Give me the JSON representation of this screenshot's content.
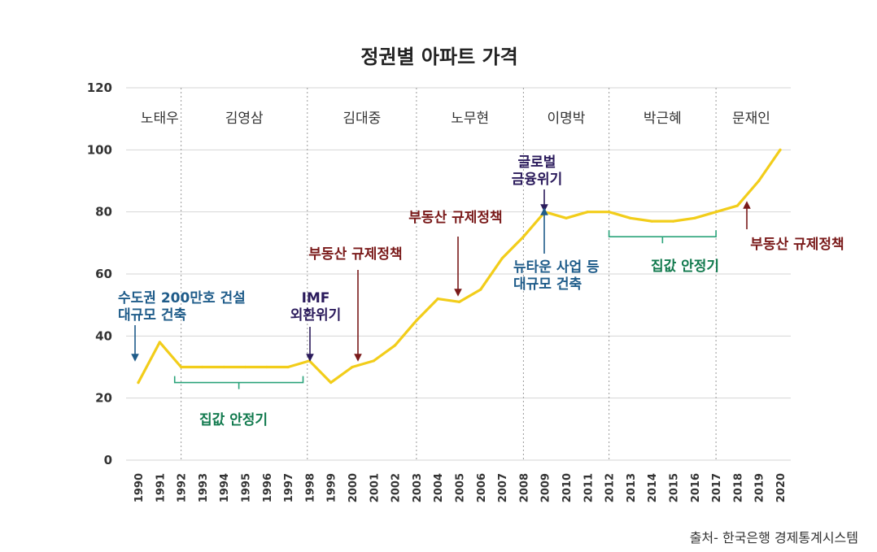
{
  "chart_data": {
    "type": "line",
    "title": "정권별 아파트 가격",
    "xlabel": "",
    "ylabel": "",
    "ylim": [
      0,
      120
    ],
    "yticks": [
      0,
      20,
      40,
      60,
      80,
      100,
      120
    ],
    "grid": true,
    "categories": [
      "1990",
      "1991",
      "1992",
      "1993",
      "1994",
      "1995",
      "1996",
      "1997",
      "1998",
      "1999",
      "2000",
      "2001",
      "2002",
      "2003",
      "2004",
      "2005",
      "2006",
      "2007",
      "2008",
      "2009",
      "2010",
      "2011",
      "2012",
      "2013",
      "2014",
      "2015",
      "2016",
      "2017",
      "2018",
      "2019",
      "2020"
    ],
    "series": [
      {
        "name": "아파트 가격",
        "x": [
          1990,
          1991,
          1992,
          1993,
          1994,
          1995,
          1996,
          1997,
          1998,
          1999,
          2000,
          2001,
          2002,
          2003,
          2004,
          2005,
          2006,
          2007,
          2008,
          2009,
          2010,
          2011,
          2012,
          2013,
          2014,
          2015,
          2016,
          2017,
          2018,
          2019,
          2020
        ],
        "values": [
          25,
          38,
          30,
          30,
          30,
          30,
          30,
          30,
          32,
          25,
          30,
          32,
          37,
          45,
          52,
          51,
          55,
          65,
          72,
          80,
          78,
          80,
          80,
          78,
          77,
          77,
          78,
          80,
          82,
          90,
          100
        ]
      }
    ],
    "eras": [
      {
        "name": "노태우",
        "start": 1990,
        "end": 1992
      },
      {
        "name": "김영삼",
        "start": 1992,
        "end": 1997.9
      },
      {
        "name": "김대중",
        "start": 1997.9,
        "end": 2003
      },
      {
        "name": "노무현",
        "start": 2003,
        "end": 2008
      },
      {
        "name": "이명박",
        "start": 2008,
        "end": 2012
      },
      {
        "name": "박근혜",
        "start": 2012,
        "end": 2017
      },
      {
        "name": "문재인",
        "start": 2017,
        "end": 2020.3
      }
    ],
    "annotations": [
      {
        "id": "ann-housing-2m",
        "lines": [
          "수도권 200만호 건설",
          "대규모 건축"
        ],
        "color": "#1f5c8a",
        "year": 1989.2
      },
      {
        "id": "ann-imf",
        "lines": [
          "IMF",
          "외환위기"
        ],
        "color": "#2b1b5c",
        "year": 1998
      },
      {
        "id": "ann-regulation-2000",
        "lines": [
          "부동산 규제정책"
        ],
        "color": "#7a1a1a",
        "year": 2000
      },
      {
        "id": "ann-regulation-2005",
        "lines": [
          "부동산 규제정책"
        ],
        "color": "#7a1a1a",
        "year": 2005
      },
      {
        "id": "ann-global-crisis",
        "lines": [
          "글로벌",
          "금융위기"
        ],
        "color": "#2b1b5c",
        "year": 2009
      },
      {
        "id": "ann-newtown",
        "lines": [
          "뉴타운 사업 등",
          "대규모 건축"
        ],
        "color": "#1f5c8a",
        "year": 2009
      },
      {
        "id": "ann-regulation-2018",
        "lines": [
          "부동산 규제정책"
        ],
        "color": "#7a1a1a",
        "year": 2018
      },
      {
        "id": "ann-stable-1",
        "lines": [
          "집값 안정기"
        ],
        "color": "#127a4e",
        "year": 1995
      },
      {
        "id": "ann-stable-2",
        "lines": [
          "집값 안정기"
        ],
        "color": "#127a4e",
        "year": 2015
      }
    ],
    "stable_periods": [
      {
        "start": 1991.7,
        "end": 1997.7,
        "y": 25
      },
      {
        "start": 2012,
        "end": 2017,
        "y": 72
      }
    ]
  },
  "source": "출처- 한국은행 경제통계시스템",
  "colors": {
    "line": "#f2cd1a",
    "grid": "#d6d6d6",
    "divider": "#9a9a9a",
    "annotation_blue": "#1f5c8a",
    "annotation_purple": "#2b1b5c",
    "annotation_red": "#7a1a1a",
    "annotation_green": "#127a4e",
    "bracket": "#2aa37a"
  }
}
